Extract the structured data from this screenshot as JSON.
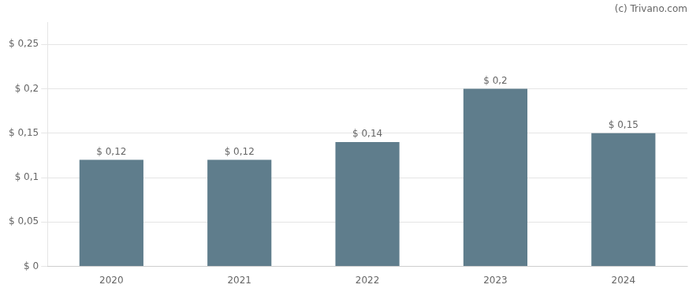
{
  "chart_data": {
    "type": "bar",
    "categories": [
      "2020",
      "2021",
      "2022",
      "2023",
      "2024"
    ],
    "values": [
      0.12,
      0.12,
      0.14,
      0.2,
      0.15
    ],
    "value_labels": [
      "$ 0,12",
      "$ 0,12",
      "$ 0,14",
      "$ 0,2",
      "$ 0,15"
    ],
    "data_labels": true,
    "color": "#5f7d8c",
    "ylim": [
      0,
      0.275
    ],
    "yticks": [
      {
        "value": 0,
        "label": "$ 0"
      },
      {
        "value": 0.05,
        "label": "$ 0,05"
      },
      {
        "value": 0.1,
        "label": "$ 0,1"
      },
      {
        "value": 0.15,
        "label": "$ 0,15"
      },
      {
        "value": 0.2,
        "label": "$ 0,2"
      },
      {
        "value": 0.25,
        "label": "$ 0,25"
      }
    ],
    "grid": true,
    "annotations": [
      "(c) Trivano.com"
    ]
  }
}
